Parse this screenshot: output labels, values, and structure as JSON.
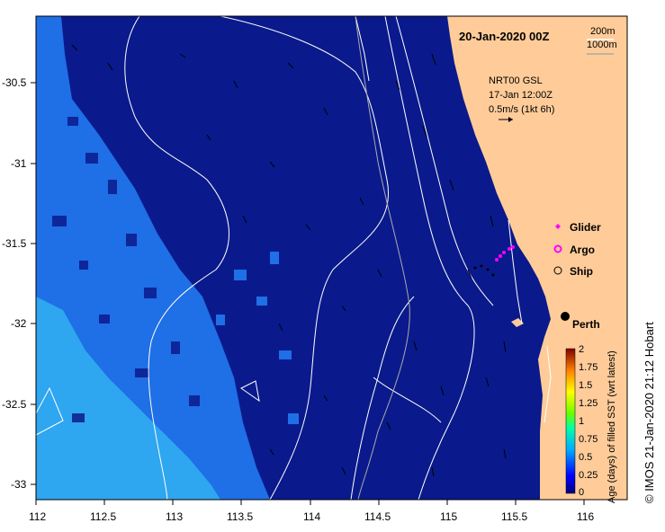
{
  "map": {
    "date_title": "20-Jan-2020 00Z",
    "depth_legend": [
      "200m",
      "1000m"
    ],
    "current_info": {
      "line1": "NRT00 GSL",
      "line2": "17-Jan 12:00Z",
      "line3": "0.5m/s (1kt 6h)"
    },
    "legend": [
      {
        "label": "Glider",
        "symbol": "diamond",
        "color": "#ff00ff"
      },
      {
        "label": "Argo",
        "symbol": "circle-fill",
        "color": "#ff00ff"
      },
      {
        "label": "Ship",
        "symbol": "circle-open",
        "color": "#000000"
      }
    ],
    "city": "Perth",
    "x_ticks": [
      "112",
      "112.5",
      "113",
      "113.5",
      "114",
      "114.5",
      "115",
      "115.5",
      "116"
    ],
    "y_ticks": [
      "-30.5",
      "-31",
      "-31.5",
      "-32",
      "-32.5",
      "-33"
    ],
    "colorbar": {
      "title": "Age (days) of filled SST (wrt latest)",
      "ticks": [
        "0",
        "0.25",
        "0.5",
        "0.75",
        "1",
        "1.25",
        "1.5",
        "1.75",
        "2"
      ]
    },
    "credit": "© IMOS 21-Jan-2020 21:12 Hobart",
    "colors": {
      "ocean": "#0a1a8c",
      "land": "#ffcc99",
      "age_mid": "#1f6fe6",
      "age_light": "#2ea6f0"
    }
  }
}
